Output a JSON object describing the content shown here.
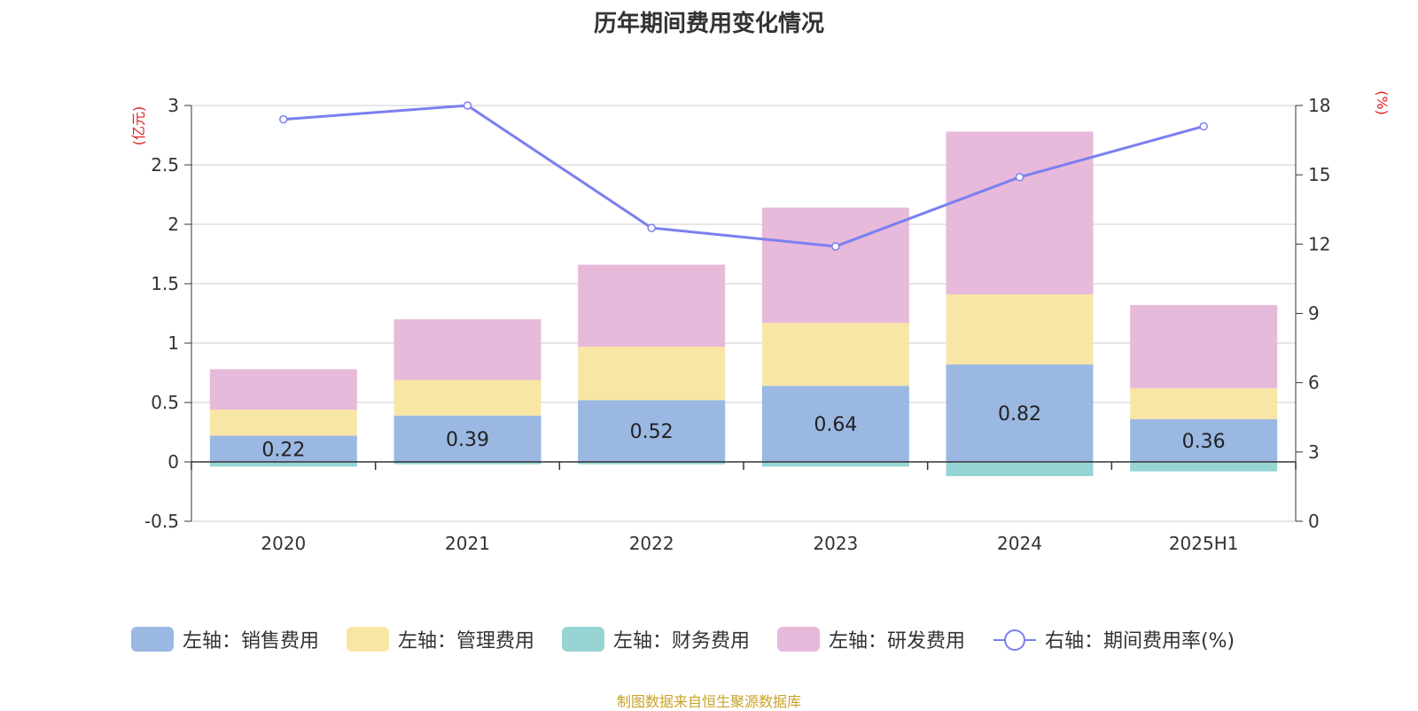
{
  "title": "历年期间费用变化情况",
  "source": "制图数据来自恒生聚源数据库",
  "chart_data": {
    "type": "bar",
    "stacked": true,
    "categories": [
      "2020",
      "2021",
      "2022",
      "2023",
      "2024",
      "2025H1"
    ],
    "left_axis": {
      "unit": "(亿元)",
      "range": [
        -0.5,
        3
      ],
      "ticks": [
        "3",
        "2.5",
        "2",
        "1.5",
        "1",
        "0.5",
        "0",
        "-0.5"
      ]
    },
    "right_axis": {
      "unit": "(%)",
      "range": [
        0,
        18
      ],
      "ticks": [
        "18",
        "15",
        "12",
        "9",
        "6",
        "3",
        "0"
      ]
    },
    "grid": true,
    "legend_position": "bottom",
    "series": [
      {
        "name": "左轴：销售费用",
        "type": "bar",
        "axis": "left",
        "color": "#9bb8e3",
        "values": [
          0.22,
          0.39,
          0.52,
          0.64,
          0.82,
          0.36
        ],
        "labels": [
          "0.22",
          "0.39",
          "0.52",
          "0.64",
          "0.82",
          "0.36"
        ]
      },
      {
        "name": "左轴：管理费用",
        "type": "bar",
        "axis": "left",
        "color": "#f8e6a6",
        "values": [
          0.22,
          0.3,
          0.45,
          0.53,
          0.59,
          0.26
        ]
      },
      {
        "name": "左轴：财务费用",
        "type": "bar",
        "axis": "left",
        "color": "#97d4d4",
        "values": [
          -0.04,
          -0.02,
          -0.02,
          -0.04,
          -0.12,
          -0.08
        ]
      },
      {
        "name": "左轴：研发费用",
        "type": "bar",
        "axis": "left",
        "color": "#e7b9da",
        "values": [
          0.34,
          0.51,
          0.69,
          0.97,
          1.37,
          0.7
        ]
      },
      {
        "name": "右轴：期间费用率(%)",
        "type": "line",
        "axis": "right",
        "color": "#7b7ff0",
        "values": [
          17.4,
          18.0,
          12.7,
          11.9,
          14.9,
          17.1
        ]
      }
    ]
  }
}
